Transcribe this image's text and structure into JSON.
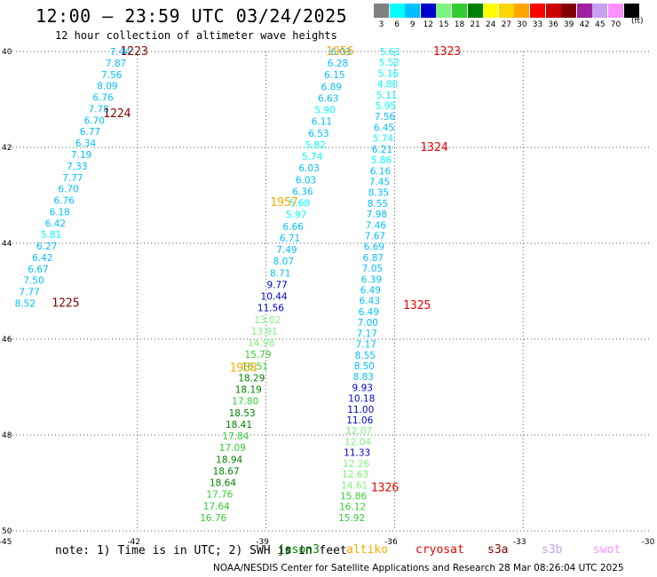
{
  "header": {
    "title": "12:00 — 23:59 UTC 03/24/2025",
    "subtitle": "12 hour collection of altimeter wave heights"
  },
  "scale": {
    "unit": "(ft)",
    "bins": [
      {
        "label": "3",
        "color": "#808080"
      },
      {
        "label": "6",
        "color": "#00ffff"
      },
      {
        "label": "9",
        "color": "#00bfff"
      },
      {
        "label": "12",
        "color": "#0000cd"
      },
      {
        "label": "15",
        "color": "#7ef27e"
      },
      {
        "label": "18",
        "color": "#32cd32"
      },
      {
        "label": "21",
        "color": "#008000"
      },
      {
        "label": "24",
        "color": "#ffff00"
      },
      {
        "label": "27",
        "color": "#ffd700"
      },
      {
        "label": "30",
        "color": "#ffa500"
      },
      {
        "label": "33",
        "color": "#ff0000"
      },
      {
        "label": "36",
        "color": "#cc0000"
      },
      {
        "label": "39",
        "color": "#800000"
      },
      {
        "label": "42",
        "color": "#a020a0"
      },
      {
        "label": "45",
        "color": "#c8a0f0"
      },
      {
        "label": "70",
        "color": "#ff90ff"
      },
      {
        "label": "",
        "color": "#000000"
      }
    ]
  },
  "axes": {
    "lon_ticks": [
      "-45",
      "-42",
      "-39",
      "-36",
      "-33",
      "-30"
    ],
    "lat_ticks": [
      "40",
      "42",
      "44",
      "46",
      "48",
      "50"
    ],
    "lon_range": [
      -45,
      -30
    ],
    "lat_range": [
      -40,
      -50
    ]
  },
  "tracks": [
    {
      "id": "track1",
      "start_lon": -42.4,
      "start_lat": -40.0,
      "end_lon": -44.62,
      "end_lat": -45.25,
      "values": [
        "7.44",
        "7.87",
        "7.56",
        "8.09",
        "6.76",
        "7.78",
        "6.70",
        "6.77",
        "6.34",
        "7.19",
        "7.33",
        "7.77",
        "6.70",
        "6.76",
        "6.18",
        "6.42",
        "5.81",
        "6.27",
        "6.42",
        "6.67",
        "7.50",
        "7.77",
        "8.52"
      ]
    },
    {
      "id": "track2",
      "start_lon": -37.25,
      "start_lat": -40.0,
      "end_lon": -40.23,
      "end_lat": -49.72,
      "values": [
        "6.03",
        "6.28",
        "6.15",
        "6.89",
        "6.63",
        "5.90",
        "6.11",
        "6.53",
        "5.82",
        "5.74",
        "6.03",
        "6.03",
        "6.36",
        "5.68",
        "5.97",
        "6.66",
        "6.71",
        "7.49",
        "8.07",
        "8.71",
        "9.77",
        "10.44",
        "11.56",
        "13.02",
        "13.91",
        "14.98",
        "15.79",
        "16.51",
        "18.29",
        "18.19",
        "17.80",
        "18.53",
        "18.41",
        "17.84",
        "17.09",
        "18.94",
        "18.67",
        "18.64",
        "17.76",
        "17.64",
        "16.76"
      ]
    },
    {
      "id": "track3",
      "start_lon": -36.1,
      "start_lat": -40.0,
      "end_lon": -37.0,
      "end_lat": -49.72,
      "values": [
        "5.61",
        "5.52",
        "5.16",
        "4.80",
        "5.11",
        "5.95",
        "7.56",
        "6.45",
        "5.74",
        "6.21",
        "5.86",
        "6.16",
        "7.45",
        "8.35",
        "8.55",
        "7.98",
        "7.46",
        "7.67",
        "6.69",
        "6.87",
        "7.05",
        "6.39",
        "6.49",
        "6.43",
        "6.49",
        "7.00",
        "7.17",
        "7.17",
        "8.55",
        "8.50",
        "8.83",
        "9.93",
        "10.18",
        "11.00",
        "11.06",
        "12.07",
        "12.04",
        "11.33",
        "12.26",
        "12.63",
        "14.61",
        "15.86",
        "16.12",
        "15.92"
      ]
    }
  ],
  "orbit_labels": [
    {
      "text": "1223",
      "lon": -42.4,
      "lat": -40.0,
      "color": "#800000"
    },
    {
      "text": "1224",
      "lon": -42.8,
      "lat": -41.3,
      "color": "#800000"
    },
    {
      "text": "1225",
      "lon": -44.0,
      "lat": -45.25,
      "color": "#800000"
    },
    {
      "text": "1956",
      "lon": -37.6,
      "lat": -40.0,
      "color": "#ffa500"
    },
    {
      "text": "1957",
      "lon": -38.9,
      "lat": -43.15,
      "color": "#ffa500"
    },
    {
      "text": "1958",
      "lon": -39.85,
      "lat": -46.6,
      "color": "#ffa500"
    },
    {
      "text": "1323",
      "lon": -35.1,
      "lat": -40.0,
      "color": "#ee0000"
    },
    {
      "text": "1324",
      "lon": -35.4,
      "lat": -42.0,
      "color": "#ee0000"
    },
    {
      "text": "1325",
      "lon": -35.8,
      "lat": -45.3,
      "color": "#ee0000"
    },
    {
      "text": "1326",
      "lon": -36.55,
      "lat": -49.1,
      "color": "#ee0000"
    }
  ],
  "footer": {
    "note": "note: 1) Time is in UTC; 2) SWH is in feet",
    "satellites": [
      {
        "name": "jason3",
        "color": "#008000"
      },
      {
        "name": "altiko",
        "color": "#ffa500"
      },
      {
        "name": "cryosat",
        "color": "#ee0000"
      },
      {
        "name": "s3a",
        "color": "#800000"
      },
      {
        "name": "s3b",
        "color": "#c8a0f0"
      },
      {
        "name": "swot",
        "color": "#ff90ff"
      }
    ],
    "credit": "NOAA/NESDIS Center for Satellite Applications and Research   28 Mar 08:26:04 UTC 2025"
  }
}
